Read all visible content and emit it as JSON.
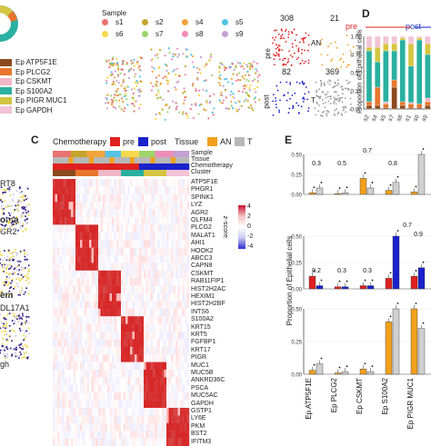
{
  "panels": {
    "c": "C",
    "d": "D",
    "e": "E"
  },
  "clusters": {
    "items": [
      {
        "label": "Ep ATP5F1E",
        "color": "#8b4a1e"
      },
      {
        "label": "Ep PLCG2",
        "color": "#e8762d"
      },
      {
        "label": "Ep CSKMT",
        "color": "#f0b7c7"
      },
      {
        "label": "Ep S100A2",
        "color": "#2ab0a0"
      },
      {
        "label": "Ep PIGR MUC1",
        "color": "#d4c542"
      },
      {
        "label": "Ep GAPDH",
        "color": "#f2c3d6"
      }
    ]
  },
  "sample": {
    "title": "Sample",
    "items": [
      {
        "label": "s1",
        "color": "#e9736f"
      },
      {
        "label": "s2",
        "color": "#c6a52d"
      },
      {
        "label": "s4",
        "color": "#f3a43c"
      },
      {
        "label": "s5",
        "color": "#54c3e6"
      },
      {
        "label": "s6",
        "color": "#f7d84d"
      },
      {
        "label": "s7",
        "color": "#9fd36b"
      },
      {
        "label": "s8",
        "color": "#f08cb8"
      },
      {
        "label": "s9",
        "color": "#c2a1d3"
      }
    ]
  },
  "umap_small": {
    "pre": "pre",
    "post": "post",
    "an": "AN",
    "t": "T",
    "n_pre": "308",
    "n_an": "21",
    "n_post": "82",
    "n_t": "369"
  },
  "left_labels": {
    "krt8": "RT8",
    "oma": "oma",
    "lgr2": "GR2",
    "em": "em",
    "col17a1": "DL17A1",
    "gh": "gh"
  },
  "heatmap": {
    "legend_chemo_title": "Chemotherapy",
    "pre": "pre",
    "post": "post",
    "legend_tissue_title": "Tissue",
    "an": "AN",
    "t": "T",
    "track_labels": [
      "Sample",
      "Tissue",
      "Chemotherapy",
      "Cluster"
    ],
    "zscore_title": "z-score",
    "zscore_ticks": [
      "4",
      "2",
      "0",
      "-2",
      "-4"
    ],
    "genes": [
      "ATP5F1E",
      "PHGR1",
      "SPINK1",
      "LYZ",
      "AGR2",
      "OLFM4",
      "PLCG2",
      "MALAT1",
      "AHI1",
      "HOOK2",
      "ABCC3",
      "CAPN8",
      "CSKMT",
      "RAB11FIP1",
      "HIST2H2AC",
      "HEXIM1",
      "HIST2H2BF",
      "INTS6",
      "S100A2",
      "KRT15",
      "KRT5",
      "FGFBP1",
      "KRT17",
      "PIGR",
      "MUC1",
      "MUC5B",
      "ANKRD36C",
      "PSCA",
      "MUC5AC",
      "GAPDH",
      "GSTP1",
      "LY6E",
      "PKM",
      "BST2",
      "IFITM3"
    ]
  },
  "panel_d": {
    "ylabel": "Proportion of Epithelial cells",
    "group_pre": "pre",
    "group_post": "post",
    "ticks": [
      "1.00",
      "0.75",
      "0.50",
      "0.25",
      "0.00"
    ],
    "samples": [
      "s2",
      "s4",
      "s5",
      "s7",
      "s8",
      "s1",
      "s6",
      "s9"
    ]
  },
  "panel_e": {
    "ylabel": "Proportion of Epithelial cells",
    "categories": [
      "Ep ATP5F1E",
      "Ep PLCG2",
      "Ep CSKMT",
      "Ep S100A2",
      "Ep PIGR MUC1",
      "Ep"
    ],
    "row1_pvals": [
      "0.3",
      "0.5",
      "0.7",
      "0.8"
    ],
    "row2_pvals": [
      "0.2",
      "0.3",
      "0.3",
      "0.9"
    ],
    "row2_extra": "0.7",
    "row1_ticks": [
      "0.50",
      "0.25",
      "0.00"
    ],
    "row2_ticks": [
      "0.50",
      "0.25",
      "0.00"
    ],
    "row3_ticks": [
      "0.50",
      "0.25",
      "0.00"
    ]
  },
  "chart_data": [
    {
      "type": "bar",
      "title": "",
      "ylabel": "Proportion of Epithelial cells",
      "categories": [
        "s2",
        "s4",
        "s5",
        "s7",
        "s8",
        "s1",
        "s6",
        "s9"
      ],
      "ylim": [
        0,
        1
      ]
    },
    {
      "type": "bar",
      "title": "",
      "ylabel": "Proportion of Epithelial cells",
      "categories": [
        "Ep ATP5F1E",
        "Ep PLCG2",
        "Ep CSKMT",
        "Ep S100A2",
        "Ep PIGR MUC1"
      ],
      "ylim": [
        0,
        0.5
      ]
    }
  ]
}
